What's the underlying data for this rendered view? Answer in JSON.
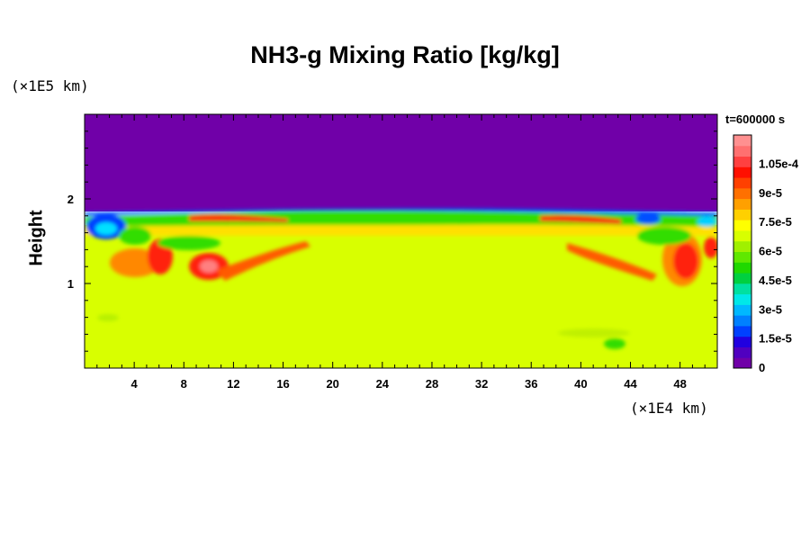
{
  "chart_data": {
    "type": "heatmap",
    "title": "NH3-g Mixing Ratio [kg/kg]",
    "ylabel": "Height",
    "xlabel": "",
    "x_unit": "(×1E4 km)",
    "y_unit": "(×1E5 km)",
    "time_label": "t=600000 s",
    "xlim": [
      0,
      51
    ],
    "ylim": [
      0,
      3
    ],
    "x_ticks": [
      4,
      8,
      12,
      16,
      20,
      24,
      28,
      32,
      36,
      40,
      44,
      48
    ],
    "y_ticks": [
      1,
      2
    ],
    "colorbar": {
      "range": [
        0,
        0.00012
      ],
      "labels": [
        "0",
        "1.5e-5",
        "3e-5",
        "4.5e-5",
        "6e-5",
        "7.5e-5",
        "9e-5",
        "1.05e-4"
      ],
      "label_values": [
        0,
        1.5e-05,
        3e-05,
        4.5e-05,
        6e-05,
        7.5e-05,
        9e-05,
        0.000105
      ]
    },
    "colors": {
      "upper_region": "#7000a8",
      "bulk": "#d8ff00",
      "band": "#33dd00",
      "high": "#ff2010",
      "eddy": "#0040ff"
    }
  }
}
